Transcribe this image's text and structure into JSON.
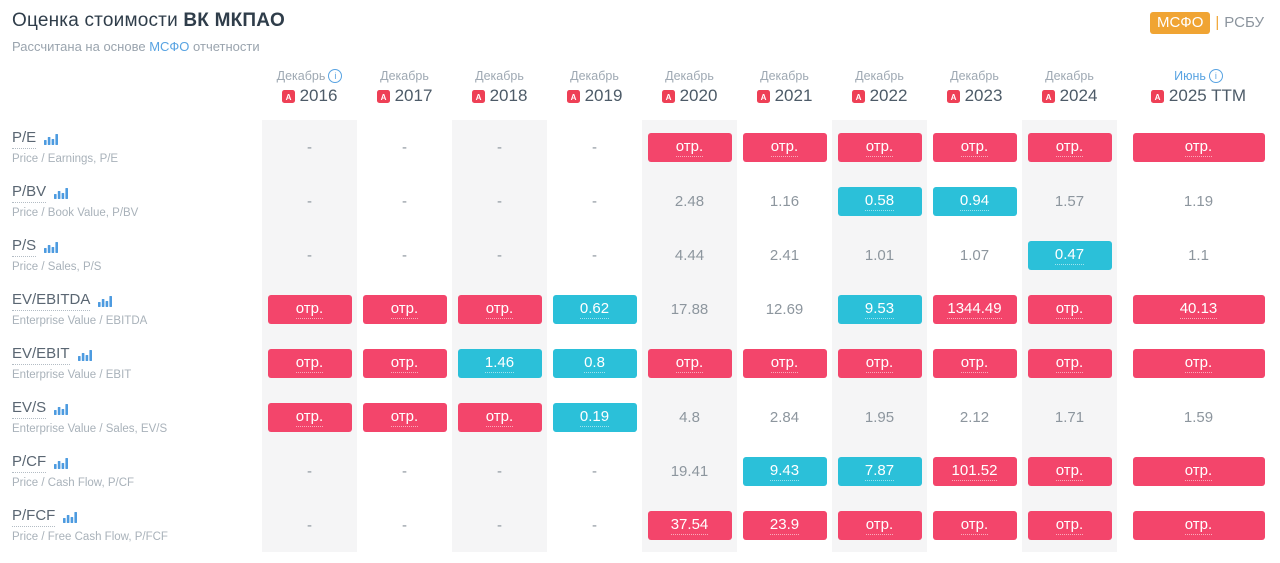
{
  "header": {
    "title_prefix": "Оценка стоимости",
    "title_company": "ВК МКПАО",
    "subtitle_prefix": "Рассчитана на основе",
    "subtitle_link": "МСФО",
    "subtitle_suffix": "отчетности",
    "toggle": {
      "active": "МСФО",
      "separator": "|",
      "inactive": "РСБУ"
    }
  },
  "colors": {
    "negative_badge": "#f3456b",
    "low_badge": "#2bc0d9",
    "accent_blue": "#58a3e2",
    "toggle_orange": "#f0a433",
    "column_stripe": "#f5f5f6"
  },
  "icons": {
    "pdf": "pdf-icon",
    "bar_chart": "bar-chart-icon",
    "info": "info-icon"
  },
  "table": {
    "columns": [
      {
        "month": "Декабрь",
        "info": true,
        "year": "2016",
        "striped": true,
        "month_highlight": false
      },
      {
        "month": "Декабрь",
        "info": false,
        "year": "2017",
        "striped": false,
        "month_highlight": false
      },
      {
        "month": "Декабрь",
        "info": false,
        "year": "2018",
        "striped": true,
        "month_highlight": false
      },
      {
        "month": "Декабрь",
        "info": false,
        "year": "2019",
        "striped": false,
        "month_highlight": false
      },
      {
        "month": "Декабрь",
        "info": false,
        "year": "2020",
        "striped": true,
        "month_highlight": false
      },
      {
        "month": "Декабрь",
        "info": false,
        "year": "2021",
        "striped": false,
        "month_highlight": false
      },
      {
        "month": "Декабрь",
        "info": false,
        "year": "2022",
        "striped": true,
        "month_highlight": false
      },
      {
        "month": "Декабрь",
        "info": false,
        "year": "2023",
        "striped": false,
        "month_highlight": false
      },
      {
        "month": "Декабрь",
        "info": false,
        "year": "2024",
        "striped": true,
        "month_highlight": false
      },
      {
        "month": "Июнь",
        "info": true,
        "year": "2025 TTM",
        "striped": false,
        "month_highlight": true
      }
    ],
    "rows": [
      {
        "label": "P/E",
        "description": "Price / Earnings, P/E",
        "cells": [
          {
            "v": "-",
            "t": "plain"
          },
          {
            "v": "-",
            "t": "plain"
          },
          {
            "v": "-",
            "t": "plain"
          },
          {
            "v": "-",
            "t": "plain"
          },
          {
            "v": "отр.",
            "t": "red"
          },
          {
            "v": "отр.",
            "t": "red"
          },
          {
            "v": "отр.",
            "t": "red"
          },
          {
            "v": "отр.",
            "t": "red"
          },
          {
            "v": "отр.",
            "t": "red"
          },
          {
            "v": "отр.",
            "t": "red"
          }
        ]
      },
      {
        "label": "P/BV",
        "description": "Price / Book Value, P/BV",
        "cells": [
          {
            "v": "-",
            "t": "plain"
          },
          {
            "v": "-",
            "t": "plain"
          },
          {
            "v": "-",
            "t": "plain"
          },
          {
            "v": "-",
            "t": "plain"
          },
          {
            "v": "2.48",
            "t": "plain"
          },
          {
            "v": "1.16",
            "t": "plain"
          },
          {
            "v": "0.58",
            "t": "cyan"
          },
          {
            "v": "0.94",
            "t": "cyan"
          },
          {
            "v": "1.57",
            "t": "plain"
          },
          {
            "v": "1.19",
            "t": "plain"
          }
        ]
      },
      {
        "label": "P/S",
        "description": "Price / Sales, P/S",
        "cells": [
          {
            "v": "-",
            "t": "plain"
          },
          {
            "v": "-",
            "t": "plain"
          },
          {
            "v": "-",
            "t": "plain"
          },
          {
            "v": "-",
            "t": "plain"
          },
          {
            "v": "4.44",
            "t": "plain"
          },
          {
            "v": "2.41",
            "t": "plain"
          },
          {
            "v": "1.01",
            "t": "plain"
          },
          {
            "v": "1.07",
            "t": "plain"
          },
          {
            "v": "0.47",
            "t": "cyan"
          },
          {
            "v": "1.1",
            "t": "plain"
          }
        ]
      },
      {
        "label": "EV/EBITDA",
        "description": "Enterprise Value / EBITDA",
        "cells": [
          {
            "v": "отр.",
            "t": "red"
          },
          {
            "v": "отр.",
            "t": "red"
          },
          {
            "v": "отр.",
            "t": "red"
          },
          {
            "v": "0.62",
            "t": "cyan"
          },
          {
            "v": "17.88",
            "t": "plain"
          },
          {
            "v": "12.69",
            "t": "plain"
          },
          {
            "v": "9.53",
            "t": "cyan"
          },
          {
            "v": "1344.49",
            "t": "red"
          },
          {
            "v": "отр.",
            "t": "red"
          },
          {
            "v": "40.13",
            "t": "red"
          }
        ]
      },
      {
        "label": "EV/EBIT",
        "description": "Enterprise Value / EBIT",
        "cells": [
          {
            "v": "отр.",
            "t": "red"
          },
          {
            "v": "отр.",
            "t": "red"
          },
          {
            "v": "1.46",
            "t": "cyan"
          },
          {
            "v": "0.8",
            "t": "cyan"
          },
          {
            "v": "отр.",
            "t": "red"
          },
          {
            "v": "отр.",
            "t": "red"
          },
          {
            "v": "отр.",
            "t": "red"
          },
          {
            "v": "отр.",
            "t": "red"
          },
          {
            "v": "отр.",
            "t": "red"
          },
          {
            "v": "отр.",
            "t": "red"
          }
        ]
      },
      {
        "label": "EV/S",
        "description": "Enterprise Value / Sales, EV/S",
        "cells": [
          {
            "v": "отр.",
            "t": "red"
          },
          {
            "v": "отр.",
            "t": "red"
          },
          {
            "v": "отр.",
            "t": "red"
          },
          {
            "v": "0.19",
            "t": "cyan"
          },
          {
            "v": "4.8",
            "t": "plain"
          },
          {
            "v": "2.84",
            "t": "plain"
          },
          {
            "v": "1.95",
            "t": "plain"
          },
          {
            "v": "2.12",
            "t": "plain"
          },
          {
            "v": "1.71",
            "t": "plain"
          },
          {
            "v": "1.59",
            "t": "plain"
          }
        ]
      },
      {
        "label": "P/CF",
        "description": "Price / Cash Flow, P/CF",
        "cells": [
          {
            "v": "-",
            "t": "plain"
          },
          {
            "v": "-",
            "t": "plain"
          },
          {
            "v": "-",
            "t": "plain"
          },
          {
            "v": "-",
            "t": "plain"
          },
          {
            "v": "19.41",
            "t": "plain"
          },
          {
            "v": "9.43",
            "t": "cyan"
          },
          {
            "v": "7.87",
            "t": "cyan"
          },
          {
            "v": "101.52",
            "t": "red"
          },
          {
            "v": "отр.",
            "t": "red"
          },
          {
            "v": "отр.",
            "t": "red"
          }
        ]
      },
      {
        "label": "P/FCF",
        "description": "Price / Free Cash Flow, P/FCF",
        "cells": [
          {
            "v": "-",
            "t": "plain"
          },
          {
            "v": "-",
            "t": "plain"
          },
          {
            "v": "-",
            "t": "plain"
          },
          {
            "v": "-",
            "t": "plain"
          },
          {
            "v": "37.54",
            "t": "red"
          },
          {
            "v": "23.9",
            "t": "red"
          },
          {
            "v": "отр.",
            "t": "red"
          },
          {
            "v": "отр.",
            "t": "red"
          },
          {
            "v": "отр.",
            "t": "red"
          },
          {
            "v": "отр.",
            "t": "red"
          }
        ]
      }
    ]
  }
}
